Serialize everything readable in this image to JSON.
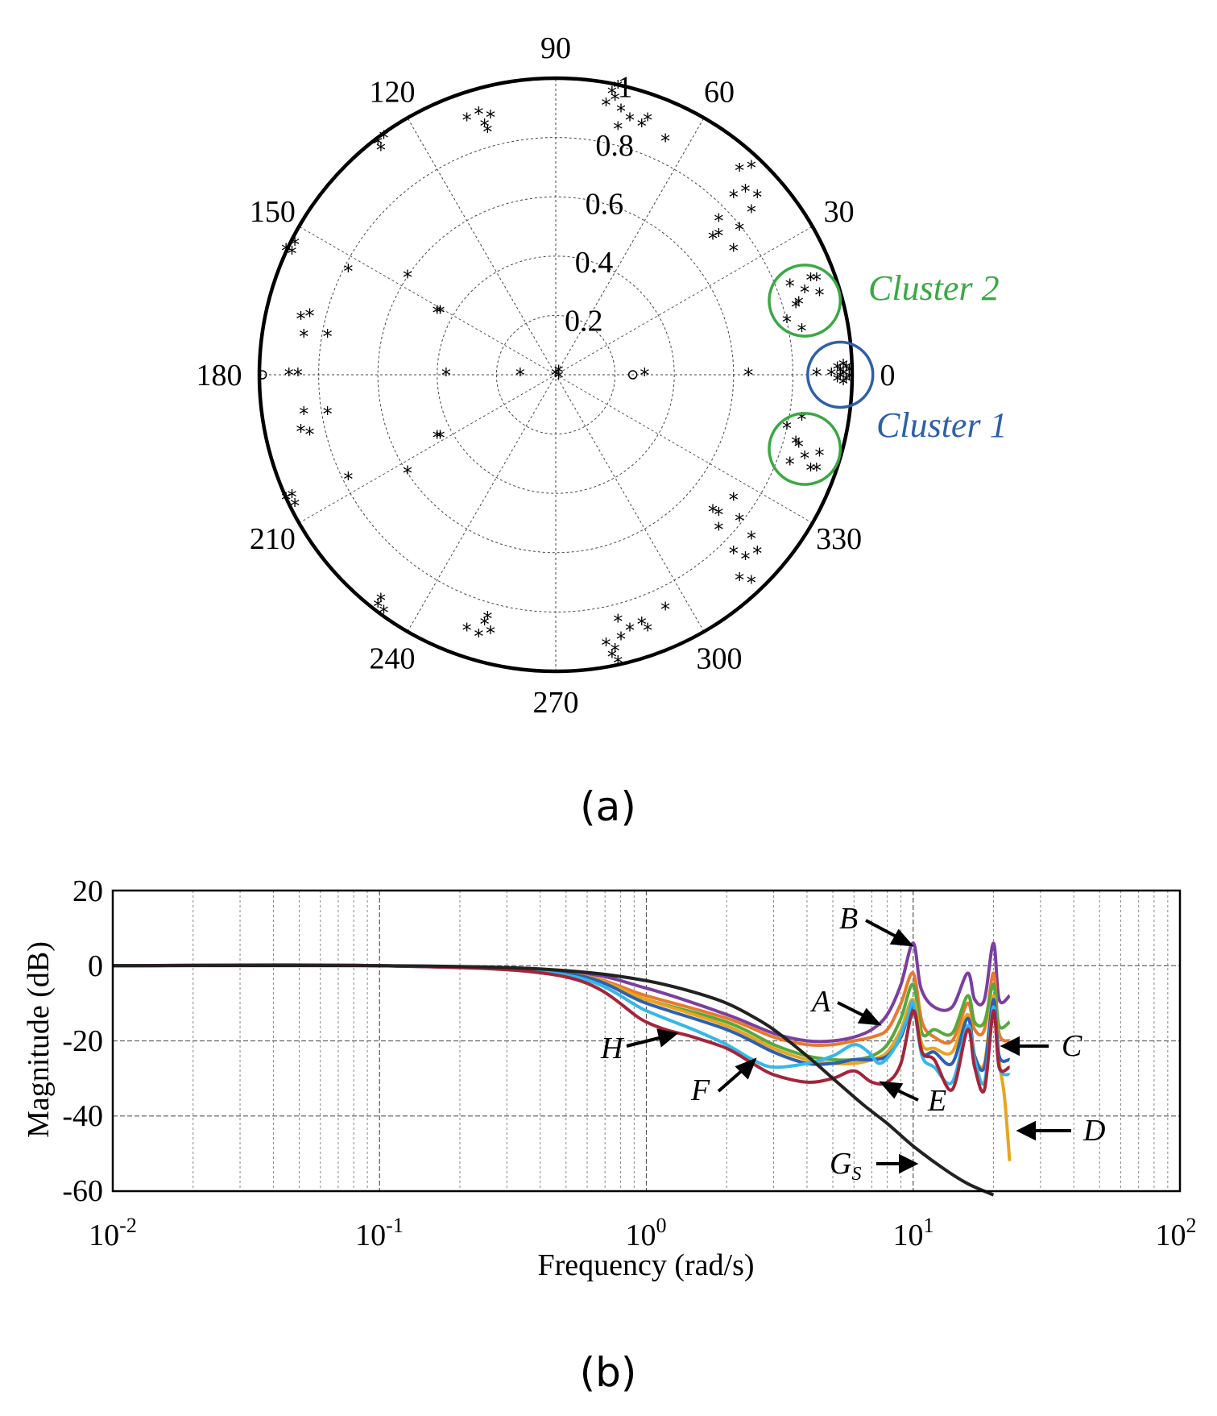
{
  "figure": {
    "panel_a_label": "(a)",
    "panel_b_label": "(b)"
  },
  "chart_data": [
    {
      "type": "scatter",
      "subtype": "polar",
      "radial_ticks": [
        "0.2",
        "0.4",
        "0.6",
        "0.8",
        "1"
      ],
      "rmax": 1,
      "angle_ticks": [
        "0",
        "30",
        "60",
        "90",
        "120",
        "150",
        "180",
        "210",
        "240",
        "270",
        "300",
        "330"
      ],
      "angle_values": [
        0,
        30,
        60,
        90,
        120,
        150,
        180,
        210,
        240,
        270,
        300,
        330
      ],
      "clusters": [
        {
          "name": "Cluster 1",
          "color": "#2f5fa8",
          "center": [
            0.96,
            0
          ],
          "radius": 0.11
        },
        {
          "name": "Cluster 2",
          "color": "#3aa843",
          "center": [
            0.84,
            0.25
          ],
          "radius": 0.12
        }
      ],
      "mirror_cluster": {
        "color": "#3aa843",
        "center": [
          0.84,
          -0.25
        ],
        "radius": 0.12
      },
      "points_upper": [
        [
          0.98,
          0.02
        ],
        [
          0.97,
          0.03
        ],
        [
          0.96,
          0.01
        ],
        [
          0.99,
          0.01
        ],
        [
          0.95,
          0.02
        ],
        [
          0.97,
          0.0
        ],
        [
          0.93,
          0.0
        ],
        [
          0.88,
          0.0
        ],
        [
          0.65,
          0.0
        ],
        [
          0.86,
          0.32
        ],
        [
          0.89,
          0.27
        ],
        [
          0.84,
          0.28
        ],
        [
          0.82,
          0.24
        ],
        [
          0.79,
          0.3
        ],
        [
          0.81,
          0.23
        ],
        [
          0.78,
          0.18
        ],
        [
          0.83,
          0.15
        ],
        [
          0.88,
          0.32
        ],
        [
          0.62,
          0.49
        ],
        [
          0.66,
          0.55
        ],
        [
          0.68,
          0.6
        ],
        [
          0.64,
          0.62
        ],
        [
          0.6,
          0.6
        ],
        [
          0.55,
          0.47
        ],
        [
          0.6,
          0.42
        ],
        [
          0.19,
          0.95
        ],
        [
          0.21,
          0.97
        ],
        [
          0.2,
          0.93
        ],
        [
          0.17,
          0.91
        ],
        [
          0.22,
          0.89
        ],
        [
          0.25,
          0.86
        ],
        [
          0.29,
          0.84
        ],
        [
          0.21,
          0.83
        ],
        [
          0.37,
          0.79
        ],
        [
          0.31,
          0.86
        ],
        [
          -0.22,
          0.87
        ],
        [
          -0.24,
          0.84
        ],
        [
          -0.26,
          0.88
        ],
        [
          -0.3,
          0.86
        ],
        [
          -0.23,
          0.82
        ],
        [
          -0.58,
          0.8
        ],
        [
          -0.6,
          0.78
        ],
        [
          -0.59,
          0.76
        ],
        [
          -0.91,
          0.42
        ],
        [
          -0.89,
          0.41
        ],
        [
          -0.88,
          0.44
        ],
        [
          -0.83,
          0.2
        ],
        [
          -0.86,
          0.19
        ],
        [
          -0.85,
          0.13
        ],
        [
          -0.77,
          0.13
        ],
        [
          -0.7,
          0.35
        ],
        [
          -0.5,
          0.33
        ],
        [
          -0.39,
          0.21
        ],
        [
          -0.4,
          0.21
        ],
        [
          -0.12,
          0.0
        ],
        [
          -0.37,
          0.0
        ],
        [
          -0.9,
          0.0
        ],
        [
          -0.87,
          0.0
        ],
        [
          0.0,
          0.0
        ],
        [
          0.01,
          0.01
        ],
        [
          0.3,
          0.0
        ],
        [
          0.53,
          0.46
        ],
        [
          0.62,
          0.69
        ],
        [
          0.66,
          0.7
        ],
        [
          0.55,
          0.52
        ]
      ],
      "points_circle": [
        [
          0.26,
          0.0
        ],
        [
          -0.99,
          0.0
        ]
      ],
      "line_series": []
    },
    {
      "type": "line",
      "xscale": "log",
      "xlim": [
        0.01,
        100
      ],
      "ylim": [
        -60,
        20
      ],
      "xlabel": "Frequency  (rad/s)",
      "ylabel": "Magnitude (dB)",
      "x_ticks": [
        "10",
        "10",
        "10",
        "10",
        "10"
      ],
      "x_tick_exps": [
        "-2",
        "-1",
        "0",
        "1",
        "2"
      ],
      "y_ticks": [
        "20",
        "0",
        "-20",
        "-40",
        "-60"
      ],
      "y_tick_values": [
        20,
        0,
        -20,
        -40,
        -60
      ],
      "series": [
        {
          "name": "Gs",
          "color": "#222222",
          "x": [
            0.01,
            0.1,
            0.3,
            0.6,
            1.0,
            1.5,
            2.0,
            2.5,
            3.0,
            4.0,
            5.0,
            6.5,
            8.0,
            10.0,
            13.0,
            16.0,
            20.0
          ],
          "values": [
            0,
            0,
            -0.5,
            -1.8,
            -4,
            -7,
            -10,
            -13.5,
            -17,
            -24,
            -30,
            -37,
            -42,
            -48,
            -54,
            -58,
            -61
          ]
        },
        {
          "name": "B",
          "color": "#7b3fa0",
          "x": [
            0.01,
            0.1,
            0.5,
            1.0,
            2.0,
            3.0,
            4.0,
            5.0,
            6.0,
            7.0,
            8.0,
            9.0,
            10.0,
            10.7,
            12.0,
            14.0,
            16.0,
            17.0,
            18.5,
            20.0,
            21.0,
            23.0
          ],
          "values": [
            0,
            0,
            -1.5,
            -6,
            -13,
            -18,
            -20,
            -20,
            -19,
            -17,
            -13,
            -5,
            6,
            -6,
            -11,
            -11,
            -2,
            -9,
            -9,
            6,
            -9,
            -8
          ]
        },
        {
          "name": "A",
          "color": "#e8792e",
          "x": [
            0.01,
            0.1,
            0.5,
            1.0,
            2.0,
            3.0,
            4.0,
            5.0,
            6.0,
            7.0,
            8.0,
            9.0,
            10.0,
            10.8,
            12.0,
            14.0,
            16.0,
            17.0,
            18.5,
            20.0,
            21.0,
            23.0
          ],
          "values": [
            0,
            0,
            -2,
            -8,
            -14,
            -19,
            -21,
            -21,
            -20,
            -19,
            -17,
            -10,
            -2,
            -15,
            -19,
            -20,
            -10,
            -17,
            -17,
            -2,
            -18,
            -20
          ]
        },
        {
          "name": "C",
          "color": "#58a83b",
          "x": [
            0.01,
            0.1,
            0.5,
            1.0,
            2.0,
            3.0,
            4.0,
            5.0,
            6.0,
            7.0,
            8.0,
            9.0,
            10.0,
            10.8,
            12.0,
            14.0,
            16.0,
            17.0,
            18.5,
            20.0,
            21.0,
            23.0
          ],
          "values": [
            0,
            0,
            -2,
            -9,
            -15,
            -21,
            -24,
            -25,
            -25,
            -24,
            -21,
            -14,
            -5,
            -18,
            -17,
            -18,
            -8,
            -15,
            -15,
            -5,
            -16,
            -15
          ]
        },
        {
          "name": "D",
          "color": "#e8a51f",
          "x": [
            0.01,
            0.1,
            0.5,
            1.0,
            2.0,
            3.0,
            4.0,
            5.0,
            6.0,
            7.0,
            8.0,
            9.0,
            10.0,
            10.8,
            12.0,
            14.0,
            16.0,
            17.0,
            18.5,
            20.0,
            21.0,
            22.0,
            23.0
          ],
          "values": [
            0,
            0,
            -2,
            -9,
            -16,
            -22,
            -25,
            -26,
            -26,
            -25,
            -23,
            -17,
            -9,
            -21,
            -22,
            -23,
            -13,
            -24,
            -26,
            -8,
            -25,
            -35,
            -52
          ]
        },
        {
          "name": "E",
          "color": "#2f5fb0",
          "x": [
            0.01,
            0.1,
            0.5,
            1.0,
            2.0,
            3.0,
            4.0,
            5.0,
            6.0,
            7.0,
            8.0,
            9.0,
            10.0,
            10.8,
            12.0,
            14.0,
            16.0,
            17.0,
            18.5,
            20.0,
            21.0,
            23.0
          ],
          "values": [
            0,
            0,
            -2,
            -10,
            -17,
            -23,
            -26,
            -26,
            -25,
            -25,
            -24,
            -19,
            -11,
            -23,
            -23,
            -26,
            -14,
            -24,
            -27,
            -9,
            -24,
            -25
          ]
        },
        {
          "name": "F",
          "color": "#36b7e8",
          "x": [
            0.01,
            0.1,
            0.5,
            1.0,
            1.5,
            2.0,
            2.5,
            3.0,
            4.0,
            5.0,
            6.0,
            6.8,
            7.5,
            8.5,
            9.5,
            10.0,
            10.8,
            12.0,
            14.0,
            16.0,
            17.0,
            18.5,
            20.0,
            21.0,
            23.0
          ],
          "values": [
            0,
            0,
            -2.5,
            -12,
            -17,
            -21,
            -25,
            -27,
            -26,
            -24,
            -21,
            -23,
            -26,
            -22,
            -14,
            -10,
            -24,
            -27,
            -31,
            -16,
            -25,
            -31,
            -11,
            -27,
            -29
          ]
        },
        {
          "name": "H",
          "color": "#a5243a",
          "x": [
            0.01,
            0.1,
            0.5,
            1.0,
            1.5,
            2.0,
            2.5,
            3.0,
            4.0,
            5.0,
            6.0,
            7.0,
            8.0,
            9.0,
            10.0,
            10.8,
            12.0,
            14.0,
            16.0,
            17.0,
            18.5,
            20.0,
            21.0,
            23.0
          ],
          "values": [
            0,
            0,
            -3,
            -15,
            -19,
            -22,
            -26,
            -29,
            -31,
            -30,
            -28,
            -31,
            -31,
            -26,
            -12,
            -23,
            -25,
            -33,
            -17,
            -27,
            -33,
            -12,
            -27,
            -27
          ]
        }
      ],
      "annotations": [
        {
          "label": "B",
          "sub": ""
        },
        {
          "label": "A",
          "sub": ""
        },
        {
          "label": "C",
          "sub": ""
        },
        {
          "label": "H",
          "sub": ""
        },
        {
          "label": "F",
          "sub": ""
        },
        {
          "label": "E",
          "sub": ""
        },
        {
          "label": "D",
          "sub": ""
        },
        {
          "label": "G",
          "sub": "S"
        }
      ]
    }
  ]
}
